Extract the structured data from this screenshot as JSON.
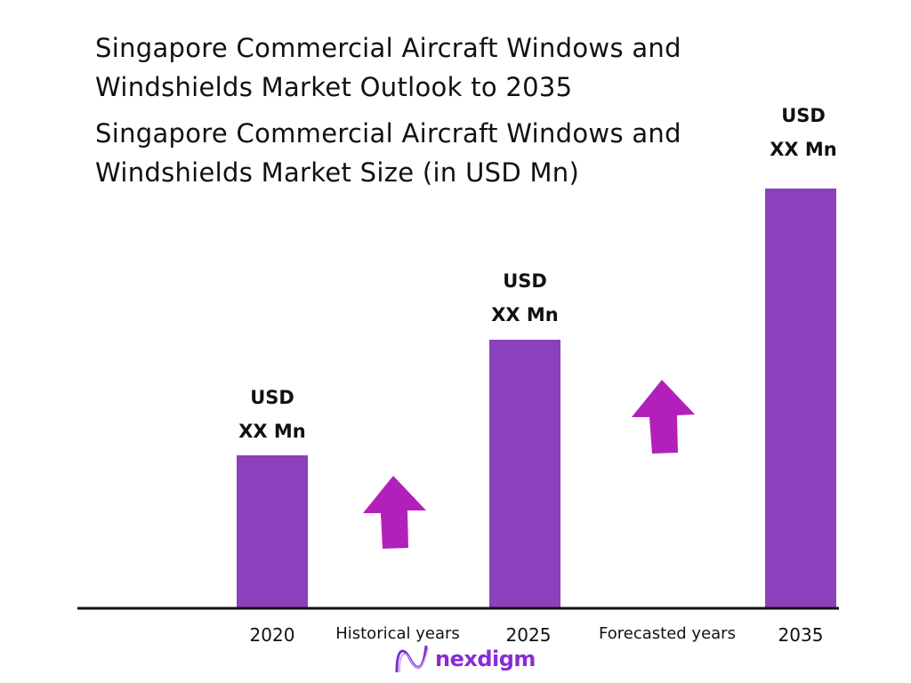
{
  "chart_data": {
    "type": "bar",
    "title": "Singapore Commercial Aircraft Windows and Windshields Market Outlook to 2035",
    "subtitle": "Singapore Commercial Aircraft Windows and Windshields Market Size (in USD Mn)",
    "title_lines": [
      "Singapore Commercial Aircraft Windows and",
      "Windshields Market Outlook to 2035"
    ],
    "subtitle_lines": [
      "Singapore Commercial Aircraft Windows and",
      "Windshields Market Size (in USD Mn)"
    ],
    "categories": [
      "2020",
      "2025",
      "2035"
    ],
    "data_labels": [
      {
        "line1": "USD",
        "line2": "XX Mn"
      },
      {
        "line1": "USD",
        "line2": "XX Mn"
      },
      {
        "line1": "USD",
        "line2": "XX Mn"
      }
    ],
    "values": null,
    "period_labels": [
      "Historical years",
      "Forecasted years"
    ],
    "trend_arrows": [
      "up",
      "up"
    ],
    "grid": false,
    "xlabel": "",
    "ylabel": "",
    "colors": {
      "bar": "#8B40BC",
      "arrow": "#B220BC",
      "axis": "#111111"
    }
  },
  "brand": {
    "name": "nexdigm",
    "color": "#8A2BD6"
  }
}
